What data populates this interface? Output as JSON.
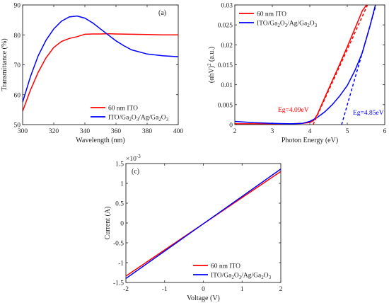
{
  "chart_data": [
    {
      "panel_label": "(a)",
      "type": "line",
      "xlabel": "Wavelength (nm)",
      "ylabel": "Transmittance (%)",
      "xlim": [
        300,
        400
      ],
      "ylim": [
        50,
        90
      ],
      "xticks": [
        "300",
        "320",
        "340",
        "360",
        "380",
        "400"
      ],
      "yticks": [
        "50",
        "60",
        "70",
        "80",
        "90"
      ],
      "legend_position": "bottom-right",
      "series": [
        {
          "name": "60 nm ITO",
          "color": "#ff0000",
          "x": [
            300,
            305,
            310,
            315,
            320,
            325,
            330,
            335,
            340,
            345,
            350,
            355,
            360,
            370,
            380,
            390,
            400
          ],
          "y": [
            54.5,
            61.5,
            67.5,
            72.3,
            75.8,
            77.8,
            78.8,
            79.4,
            80.2,
            80.3,
            80.3,
            80.4,
            80.3,
            80.2,
            80.1,
            80.0,
            80.0
          ]
        },
        {
          "name": "ITO/Ga2O3/Ag/Ga2O3",
          "name_parts": [
            "ITO/Ga",
            "2",
            "O",
            "3",
            "/Ag/Ga",
            "2",
            "O",
            "3"
          ],
          "color": "#0000ff",
          "x": [
            300,
            305,
            310,
            315,
            320,
            325,
            330,
            335,
            340,
            345,
            350,
            355,
            360,
            365,
            370,
            380,
            390,
            400
          ],
          "y": [
            57.5,
            66.0,
            73.0,
            78.2,
            82.0,
            84.6,
            86.0,
            86.3,
            85.6,
            84.0,
            82.0,
            80.0,
            78.0,
            76.4,
            75.0,
            73.6,
            73.0,
            72.7
          ]
        }
      ]
    },
    {
      "panel_label": "(b)",
      "type": "line",
      "xlabel": "Photon Energy (eV)",
      "ylabel_parts": [
        "(αhV)",
        "2",
        " (a.u.)"
      ],
      "xlim": [
        2,
        6
      ],
      "ylim": [
        0,
        0.03
      ],
      "xticks": [
        "2",
        "3",
        "4",
        "5",
        "6"
      ],
      "yticks": [
        "0",
        "0.005",
        "0.01",
        "0.015",
        "0.02",
        "0.025",
        "0.03"
      ],
      "legend_position": "top-left",
      "series": [
        {
          "name": "60 nm ITO",
          "color": "#ff0000",
          "x": [
            2.0,
            2.5,
            3.0,
            3.5,
            3.8,
            4.0,
            4.1,
            4.2,
            4.4,
            4.6,
            4.8,
            5.0,
            5.2,
            5.4,
            5.55
          ],
          "y": [
            0.0002,
            0.0002,
            0.0002,
            0.0002,
            0.0003,
            0.0005,
            0.001,
            0.0025,
            0.0068,
            0.011,
            0.0152,
            0.0195,
            0.024,
            0.0285,
            0.0305
          ]
        },
        {
          "name": "ITO/Ga2O3/Ag/Ga2O3",
          "name_parts": [
            "ITO/Ga",
            "2",
            "O",
            "3",
            "/Ag/Ga",
            "2",
            "O",
            "3"
          ],
          "color": "#0000ff",
          "x": [
            2.0,
            2.5,
            3.0,
            3.5,
            3.8,
            4.0,
            4.2,
            4.4,
            4.6,
            4.8,
            5.0,
            5.2,
            5.4,
            5.6,
            5.75
          ],
          "y": [
            0.0008,
            0.0005,
            0.0003,
            0.0002,
            0.0003,
            0.0008,
            0.0018,
            0.0032,
            0.005,
            0.0072,
            0.0098,
            0.0135,
            0.018,
            0.0245,
            0.03
          ]
        }
      ],
      "fit_lines": [
        {
          "color": "#ff0000",
          "x": [
            4.09,
            5.55
          ],
          "y": [
            0,
            0.0302
          ]
        },
        {
          "color": "#0000ff",
          "x": [
            4.85,
            5.75
          ],
          "y": [
            0,
            0.0295
          ]
        }
      ],
      "annotations": [
        {
          "text": "Eg=4.09eV",
          "color": "#ff0000",
          "x": 3.15,
          "y": 0.0032
        },
        {
          "text": "Eg=4.85eV",
          "color": "#0000ff",
          "x": 5.15,
          "y": 0.0025
        }
      ]
    },
    {
      "panel_label": "(c)",
      "type": "line",
      "xlabel": "Voltage (V)",
      "ylabel": "Current (A)",
      "xlim": [
        -2,
        2
      ],
      "ylim": [
        -0.0015,
        0.0015
      ],
      "y_exponent_base": "×10",
      "y_exponent_power": "-3",
      "xticks": [
        "-2",
        "-1",
        "0",
        "1",
        "2"
      ],
      "yticks": [
        "-1.5",
        "-1",
        "-0.5",
        "0",
        "0.5",
        "1",
        "1.5"
      ],
      "legend_position": "bottom-right",
      "series": [
        {
          "name": "60 nm ITO",
          "color": "#ff0000",
          "x": [
            -2,
            2
          ],
          "y": [
            -0.00134,
            0.0013
          ]
        },
        {
          "name": "ITO/Ga2O3/Ag/Ga2O3",
          "name_parts": [
            "ITO/Ga",
            "2",
            "O",
            "3",
            "/Ag/Ga",
            "2",
            "O",
            "3"
          ],
          "color": "#0000ff",
          "x": [
            -2,
            2
          ],
          "y": [
            -0.0014,
            0.00136
          ]
        }
      ]
    }
  ]
}
